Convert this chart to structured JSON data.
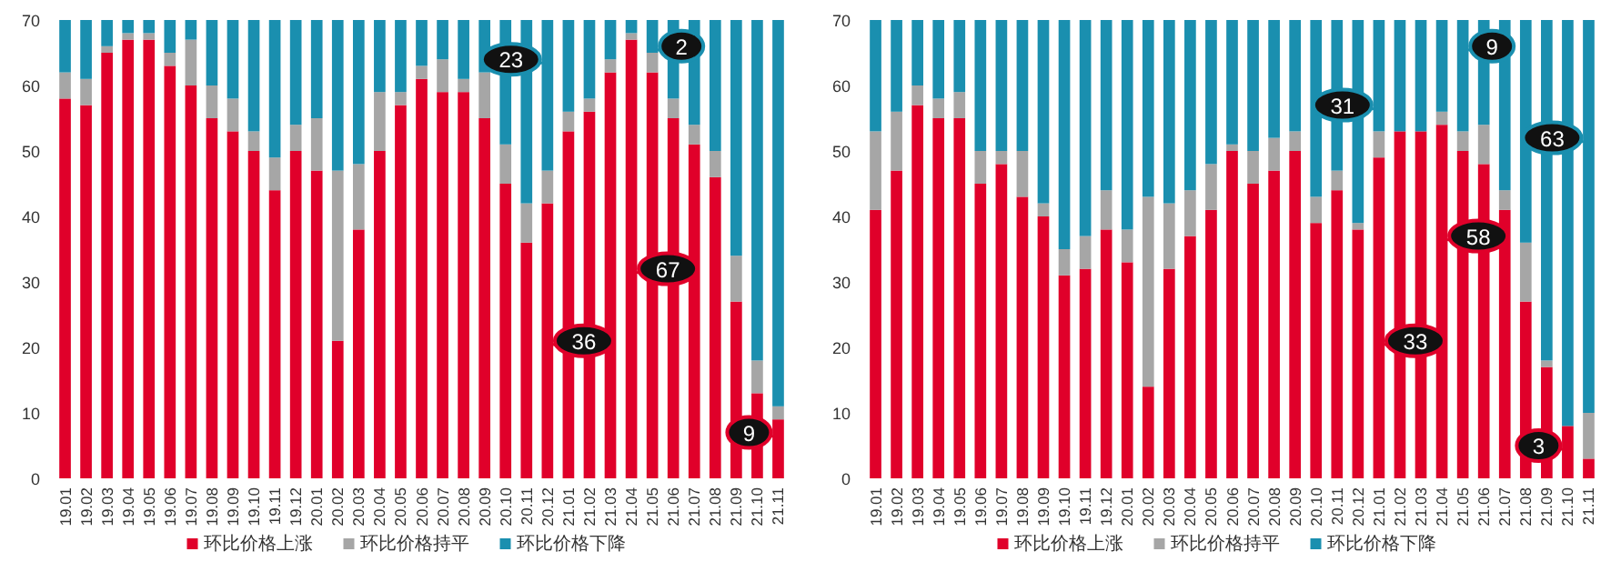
{
  "chart_data": [
    {
      "type": "bar",
      "stacked": true,
      "legend": "bottom",
      "categories": [
        "19.01",
        "19.02",
        "19.03",
        "19.04",
        "19.05",
        "19.06",
        "19.07",
        "19.08",
        "19.09",
        "19.10",
        "19.11",
        "19.12",
        "20.01",
        "20.02",
        "20.03",
        "20.04",
        "20.05",
        "20.06",
        "20.07",
        "20.08",
        "20.09",
        "20.10",
        "20.11",
        "20.12",
        "21.01",
        "21.02",
        "21.03",
        "21.04",
        "21.05",
        "21.06",
        "21.07",
        "21.08",
        "21.09",
        "21.10",
        "21.11"
      ],
      "series": [
        {
          "name": "环比价格上涨",
          "color": "#e0002a",
          "values": [
            58,
            57,
            65,
            67,
            67,
            63,
            60,
            55,
            53,
            50,
            44,
            50,
            47,
            21,
            38,
            50,
            57,
            61,
            59,
            59,
            55,
            45,
            36,
            42,
            53,
            56,
            62,
            67,
            62,
            55,
            51,
            46,
            27,
            13,
            9
          ]
        },
        {
          "name": "环比价格持平",
          "color": "#a6a6a6",
          "values": [
            4,
            4,
            1,
            1,
            1,
            2,
            7,
            5,
            5,
            3,
            5,
            4,
            8,
            26,
            10,
            9,
            2,
            2,
            5,
            2,
            7,
            6,
            6,
            5,
            3,
            2,
            2,
            1,
            3,
            3,
            3,
            4,
            7,
            5,
            2
          ]
        },
        {
          "name": "环比价格下降",
          "color": "#1a8faf",
          "values": [
            8,
            9,
            4,
            2,
            2,
            5,
            3,
            10,
            12,
            17,
            21,
            16,
            15,
            23,
            22,
            11,
            11,
            7,
            6,
            9,
            8,
            19,
            28,
            23,
            14,
            12,
            6,
            2,
            5,
            12,
            16,
            20,
            36,
            52,
            59
          ]
        }
      ],
      "ylim": [
        0,
        70
      ],
      "yticks": [
        0,
        10,
        20,
        30,
        40,
        50,
        60,
        70
      ],
      "annotations": [
        {
          "text": "23",
          "x": "20.12",
          "y": 64
        },
        {
          "text": "2",
          "x": "21.05",
          "y": 66
        },
        {
          "text": "67",
          "x": "21.04",
          "y": 32
        },
        {
          "text": "36",
          "x": "20.12",
          "y": 21
        },
        {
          "text": "9",
          "x": "21.11",
          "y": 7
        }
      ]
    },
    {
      "type": "bar",
      "stacked": true,
      "legend": "bottom",
      "categories": [
        "19.01",
        "19.02",
        "19.03",
        "19.04",
        "19.05",
        "19.06",
        "19.07",
        "19.08",
        "19.09",
        "19.10",
        "19.11",
        "19.12",
        "20.01",
        "20.02",
        "20.03",
        "20.04",
        "20.05",
        "20.06",
        "20.07",
        "20.08",
        "20.09",
        "20.10",
        "20.11",
        "20.12",
        "21.01",
        "21.02",
        "21.03",
        "21.04",
        "21.05",
        "21.06",
        "21.07",
        "21.08",
        "21.09",
        "21.10",
        "21.11"
      ],
      "series": [
        {
          "name": "环比价格上涨",
          "color": "#e0002a",
          "values": [
            41,
            47,
            57,
            55,
            55,
            45,
            48,
            43,
            40,
            31,
            32,
            38,
            33,
            14,
            32,
            37,
            41,
            50,
            45,
            47,
            50,
            39,
            44,
            38,
            49,
            53,
            53,
            54,
            50,
            48,
            41,
            27,
            17,
            8,
            3
          ]
        },
        {
          "name": "环比价格持平",
          "color": "#a6a6a6",
          "values": [
            12,
            9,
            3,
            3,
            4,
            5,
            2,
            7,
            2,
            4,
            5,
            6,
            5,
            29,
            10,
            7,
            7,
            1,
            5,
            5,
            3,
            4,
            3,
            1,
            4,
            0,
            0,
            2,
            3,
            6,
            3,
            9,
            1,
            0,
            7
          ]
        },
        {
          "name": "环比价格下降",
          "color": "#1a8faf",
          "values": [
            17,
            14,
            10,
            12,
            11,
            20,
            20,
            20,
            28,
            35,
            33,
            26,
            32,
            27,
            28,
            26,
            22,
            19,
            20,
            18,
            17,
            27,
            23,
            31,
            17,
            17,
            17,
            14,
            17,
            16,
            26,
            34,
            52,
            62,
            60
          ]
        }
      ],
      "ylim": [
        0,
        70
      ],
      "yticks": [
        0,
        10,
        20,
        30,
        40,
        50,
        60,
        70
      ],
      "annotations": [
        {
          "text": "31",
          "x": "21.01",
          "y": 57
        },
        {
          "text": "9",
          "x": "21.05",
          "y": 66
        },
        {
          "text": "58",
          "x": "21.04",
          "y": 37
        },
        {
          "text": "33",
          "x": "21.01",
          "y": 21
        },
        {
          "text": "63",
          "x": "21.11",
          "y": 52
        },
        {
          "text": "3",
          "x": "21.10",
          "y": 5
        }
      ]
    }
  ]
}
